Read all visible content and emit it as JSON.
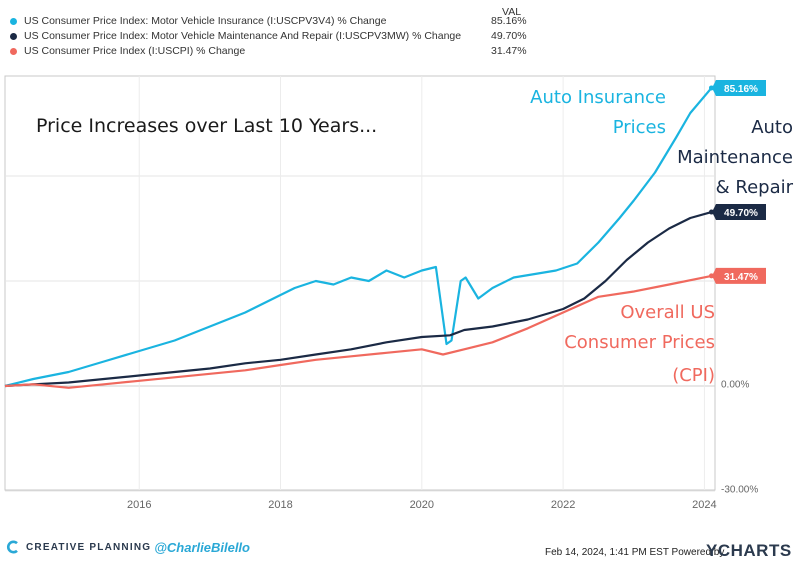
{
  "legend": {
    "header": "VAL",
    "items": [
      {
        "label": "US Consumer Price Index: Motor Vehicle Insurance (I:USCPV3V4) % Change",
        "value": "85.16%",
        "color": "#1ab4e0"
      },
      {
        "label": "US Consumer Price Index: Motor Vehicle Maintenance And Repair (I:USCPV3MW) % Change",
        "value": "49.70%",
        "color": "#1b2a45"
      },
      {
        "label": "US Consumer Price Index (I:USCPI) % Change",
        "value": "31.47%",
        "color": "#f0695e"
      }
    ]
  },
  "chart_data": {
    "type": "line",
    "title": "Price  Increases over Last 10 Years...",
    "xlabel": "",
    "ylabel": "",
    "xlim": [
      2014.1,
      2024.15
    ],
    "ylim": [
      -30,
      85
    ],
    "grid": true,
    "x_ticks": [
      "2016",
      "2018",
      "2020",
      "2022",
      "2024"
    ],
    "y_ticks": [
      "0.00%",
      "-30.00%"
    ],
    "series": [
      {
        "name": "US Consumer Price Index: Motor Vehicle Insurance (I:USCPV3V4) % Change",
        "color": "#1ab4e0",
        "end_label": "85.16%",
        "annotation": [
          "Auto Insurance",
          "Prices"
        ],
        "x": [
          2014.1,
          2014.5,
          2015,
          2015.5,
          2016,
          2016.5,
          2017,
          2017.5,
          2018,
          2018.2,
          2018.5,
          2018.75,
          2019,
          2019.25,
          2019.5,
          2019.75,
          2020,
          2020.2,
          2020.35,
          2020.42,
          2020.55,
          2020.62,
          2020.8,
          2021,
          2021.3,
          2021.6,
          2021.9,
          2022.2,
          2022.5,
          2022.8,
          2023,
          2023.3,
          2023.6,
          2023.8,
          2024.1
        ],
        "values": [
          0,
          2,
          4,
          7,
          10,
          13,
          17,
          21,
          26,
          28,
          30,
          29,
          31,
          30,
          33,
          31,
          33,
          34,
          12,
          13,
          30,
          31,
          25,
          28,
          31,
          32,
          33,
          35,
          41,
          48,
          53,
          61,
          71,
          78,
          85.16
        ]
      },
      {
        "name": "US Consumer Price Index: Motor Vehicle Maintenance And Repair (I:USCPV3MW) % Change",
        "color": "#1b2a45",
        "end_label": "49.70%",
        "annotation": [
          "Auto",
          "Maintenance",
          "& Repair"
        ],
        "x": [
          2014.1,
          2014.5,
          2015,
          2015.5,
          2016,
          2016.5,
          2017,
          2017.5,
          2018,
          2018.5,
          2019,
          2019.5,
          2020,
          2020.4,
          2020.6,
          2021,
          2021.5,
          2022,
          2022.3,
          2022.6,
          2022.9,
          2023.2,
          2023.5,
          2023.8,
          2024.1
        ],
        "values": [
          0,
          0.5,
          1,
          2,
          3,
          4,
          5,
          6.5,
          7.5,
          9,
          10.5,
          12.5,
          14,
          14.5,
          16,
          17,
          19,
          22,
          25,
          30,
          36,
          41,
          45,
          48,
          49.7
        ]
      },
      {
        "name": "US Consumer Price Index (I:USCPI) % Change",
        "color": "#f0695e",
        "end_label": "31.47%",
        "annotation": [
          "Overall US",
          "Consumer Prices",
          "(CPI)"
        ],
        "x": [
          2014.1,
          2014.5,
          2015,
          2015.5,
          2016,
          2016.5,
          2017,
          2017.5,
          2018,
          2018.5,
          2019,
          2019.5,
          2020,
          2020.3,
          2020.6,
          2021,
          2021.5,
          2022,
          2022.5,
          2023,
          2023.5,
          2024.1
        ],
        "values": [
          0,
          0.5,
          -0.5,
          0.5,
          1.5,
          2.5,
          3.5,
          4.5,
          6,
          7.5,
          8.5,
          9.5,
          10.5,
          9,
          10.5,
          12.5,
          16.5,
          21,
          25.5,
          27,
          29,
          31.47
        ]
      }
    ]
  },
  "footer": {
    "brand": "CREATIVE PLANNING",
    "handle": "@CharlieBilello",
    "date": "Feb 14, 2024, 1:41 PM EST Powered by",
    "logo": "YCHARTS"
  }
}
